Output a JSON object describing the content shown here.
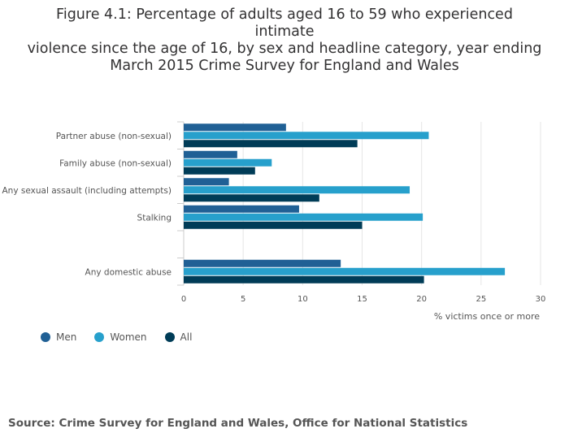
{
  "title_lines": [
    "Figure 4.1: Percentage of adults aged 16 to 59 who experienced intimate",
    "violence since the age of 16, by sex and headline category, year ending",
    "March 2015 Crime Survey for England and Wales"
  ],
  "source": "Source: Crime Survey for England and Wales, Office for National Statistics",
  "chart_data": {
    "type": "bar",
    "orientation": "horizontal",
    "categories": [
      "Partner abuse (non-sexual)",
      "Family abuse (non-sexual)",
      "Any sexual assault (including attempts)",
      "Stalking",
      "",
      "Any domestic abuse"
    ],
    "series": [
      {
        "name": "Men",
        "color": "#206095",
        "values": [
          8.6,
          4.5,
          3.8,
          9.7,
          null,
          13.2
        ]
      },
      {
        "name": "Women",
        "color": "#27a0cc",
        "values": [
          20.6,
          7.4,
          19.0,
          20.1,
          null,
          27.0
        ]
      },
      {
        "name": "All",
        "color": "#003c57",
        "values": [
          14.6,
          6.0,
          11.4,
          15.0,
          null,
          20.2
        ]
      }
    ],
    "xlim": [
      0,
      30
    ],
    "xticks": [
      0,
      5,
      10,
      15,
      20,
      25,
      30
    ],
    "xlabel": "% victims once or more",
    "ylabel": "",
    "grid": true,
    "legend_position": "bottom-left"
  }
}
